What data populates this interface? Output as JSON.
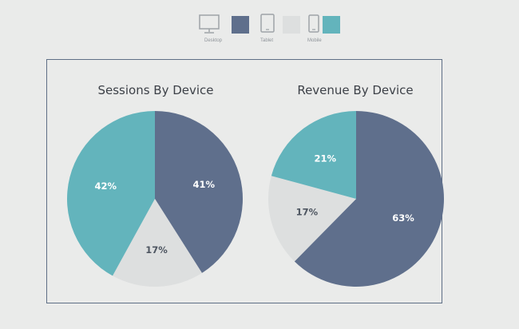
{
  "legend": {
    "items": [
      {
        "label": "Desktop",
        "color": "#5f6f8c",
        "icon": "desktop-icon"
      },
      {
        "label": "Tablet",
        "color": "#dddfdf",
        "icon": "tablet-icon"
      },
      {
        "label": "Mobile",
        "color": "#63b4bc",
        "icon": "mobile-icon"
      }
    ]
  },
  "chart_data": [
    {
      "type": "pie",
      "title": "Sessions By Device",
      "slices": [
        {
          "name": "Desktop",
          "value": 41,
          "label": "41%",
          "color": "#5f6f8c"
        },
        {
          "name": "Tablet",
          "value": 17,
          "label": "17%",
          "color": "#dddfdf"
        },
        {
          "name": "Mobile",
          "value": 42,
          "label": "42%",
          "color": "#63b4bc"
        }
      ]
    },
    {
      "type": "pie",
      "title": "Revenue By Device",
      "slices": [
        {
          "name": "Desktop",
          "value": 63,
          "label": "63%",
          "color": "#5f6f8c"
        },
        {
          "name": "Tablet",
          "value": 17,
          "label": "17%",
          "color": "#dddfdf"
        },
        {
          "name": "Mobile",
          "value": 21,
          "label": "21%",
          "color": "#63b4bc"
        }
      ]
    }
  ]
}
